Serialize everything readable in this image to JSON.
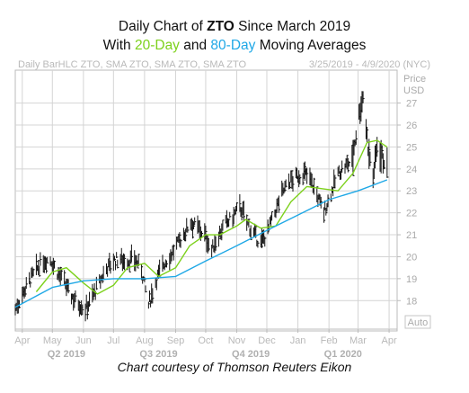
{
  "header": {
    "line1_pre": "Daily Chart of ",
    "line1_ticker": "ZTO",
    "line1_post": " Since March 2019",
    "line2_pre": "With ",
    "line2_ma1": "20-Day",
    "line2_mid": " and ",
    "line2_ma2": "80-Day",
    "line2_post": " Moving Averages"
  },
  "chart_meta": {
    "study_label": "Daily BarHLC ZTO, SMA ZTO, SMA ZTO, SMA ZTO",
    "date_range": "3/25/2019 - 4/9/2020 (NYC)",
    "price_label": "Price",
    "currency_label": "USD",
    "auto_label": "Auto"
  },
  "caption": "Chart courtesy of Thomson Reuters Eikon",
  "colors": {
    "bars": "#111111",
    "sma20": "#7dd11c",
    "sma80": "#1fa8e6",
    "grid": "#d4d4d4",
    "frame": "#bbbbbb"
  },
  "chart_data": {
    "type": "line",
    "title": "Daily Chart of ZTO Since March 2019",
    "subtitle": "With 20-Day and 80-Day Moving Averages",
    "xlabel": "",
    "ylabel": "Price USD",
    "ylim": [
      16.7,
      28.5
    ],
    "yticks": [
      18,
      19,
      20,
      21,
      22,
      23,
      24,
      25,
      26,
      27
    ],
    "x_start": "2019-03-25",
    "x_end": "2020-04-09",
    "x_month_ticks": [
      {
        "label": "Apr",
        "date": "2019-04-01"
      },
      {
        "label": "May",
        "date": "2019-05-01"
      },
      {
        "label": "Jun",
        "date": "2019-06-01"
      },
      {
        "label": "Jul",
        "date": "2019-07-01"
      },
      {
        "label": "Aug",
        "date": "2019-08-01"
      },
      {
        "label": "Sep",
        "date": "2019-09-01"
      },
      {
        "label": "Oct",
        "date": "2019-10-01"
      },
      {
        "label": "Nov",
        "date": "2019-11-01"
      },
      {
        "label": "Dec",
        "date": "2019-12-01"
      },
      {
        "label": "Jan",
        "date": "2020-01-01"
      },
      {
        "label": "Feb",
        "date": "2020-02-01"
      },
      {
        "label": "Mar",
        "date": "2020-03-01"
      },
      {
        "label": "Apr",
        "date": "2020-04-01"
      }
    ],
    "x_quarter_labels": [
      {
        "label": "Q2 2019",
        "date": "2019-05-15"
      },
      {
        "label": "Q3 2019",
        "date": "2019-08-15"
      },
      {
        "label": "Q4 2019",
        "date": "2019-11-15"
      },
      {
        "label": "Q1 2020",
        "date": "2020-02-15"
      }
    ],
    "grid": true,
    "price_points": [
      [
        "2019-03-25",
        17.6
      ],
      [
        "2019-04-01",
        18.3
      ],
      [
        "2019-04-08",
        18.9
      ],
      [
        "2019-04-15",
        19.4
      ],
      [
        "2019-04-22",
        19.8
      ],
      [
        "2019-04-29",
        19.9
      ],
      [
        "2019-05-06",
        19.3
      ],
      [
        "2019-05-13",
        18.8
      ],
      [
        "2019-05-20",
        18.2
      ],
      [
        "2019-05-27",
        17.9
      ],
      [
        "2019-06-03",
        17.6
      ],
      [
        "2019-06-10",
        18.2
      ],
      [
        "2019-06-17",
        18.8
      ],
      [
        "2019-06-24",
        19.5
      ],
      [
        "2019-07-01",
        19.8
      ],
      [
        "2019-07-08",
        19.9
      ],
      [
        "2019-07-15",
        19.8
      ],
      [
        "2019-07-22",
        19.9
      ],
      [
        "2019-07-29",
        19.4
      ],
      [
        "2019-08-05",
        17.8
      ],
      [
        "2019-08-12",
        18.9
      ],
      [
        "2019-08-19",
        19.6
      ],
      [
        "2019-08-26",
        20.0
      ],
      [
        "2019-09-02",
        20.5
      ],
      [
        "2019-09-09",
        21.0
      ],
      [
        "2019-09-16",
        21.6
      ],
      [
        "2019-09-23",
        21.3
      ],
      [
        "2019-09-30",
        21.0
      ],
      [
        "2019-10-07",
        20.3
      ],
      [
        "2019-10-14",
        21.0
      ],
      [
        "2019-10-21",
        21.5
      ],
      [
        "2019-10-28",
        21.8
      ],
      [
        "2019-11-04",
        22.3
      ],
      [
        "2019-11-11",
        21.6
      ],
      [
        "2019-11-18",
        21.0
      ],
      [
        "2019-11-25",
        20.6
      ],
      [
        "2019-12-02",
        21.2
      ],
      [
        "2019-12-09",
        22.0
      ],
      [
        "2019-12-16",
        22.9
      ],
      [
        "2019-12-23",
        23.4
      ],
      [
        "2019-12-30",
        23.6
      ],
      [
        "2020-01-06",
        23.8
      ],
      [
        "2020-01-13",
        23.6
      ],
      [
        "2020-01-20",
        22.8
      ],
      [
        "2020-01-27",
        22.0
      ],
      [
        "2020-02-03",
        22.9
      ],
      [
        "2020-02-10",
        23.8
      ],
      [
        "2020-02-17",
        24.1
      ],
      [
        "2020-02-24",
        24.4
      ],
      [
        "2020-03-02",
        26.5
      ],
      [
        "2020-03-06",
        27.3
      ],
      [
        "2020-03-11",
        25.0
      ],
      [
        "2020-03-16",
        23.6
      ],
      [
        "2020-03-20",
        25.1
      ],
      [
        "2020-03-25",
        24.6
      ],
      [
        "2020-03-30",
        24.0
      ]
    ],
    "series": [
      {
        "name": "SMA 20",
        "values": [
          [
            "2019-04-15",
            18.4
          ],
          [
            "2019-05-01",
            19.3
          ],
          [
            "2019-05-15",
            19.5
          ],
          [
            "2019-06-01",
            18.8
          ],
          [
            "2019-06-15",
            18.3
          ],
          [
            "2019-07-01",
            18.7
          ],
          [
            "2019-07-15",
            19.5
          ],
          [
            "2019-08-01",
            19.7
          ],
          [
            "2019-08-15",
            19.1
          ],
          [
            "2019-09-01",
            19.5
          ],
          [
            "2019-09-15",
            20.5
          ],
          [
            "2019-10-01",
            21.0
          ],
          [
            "2019-10-15",
            21.0
          ],
          [
            "2019-11-01",
            21.4
          ],
          [
            "2019-11-10",
            21.7
          ],
          [
            "2019-11-25",
            21.3
          ],
          [
            "2019-12-10",
            21.4
          ],
          [
            "2019-12-25",
            22.5
          ],
          [
            "2020-01-10",
            23.2
          ],
          [
            "2020-01-25",
            23.1
          ],
          [
            "2020-02-10",
            23.0
          ],
          [
            "2020-02-25",
            23.8
          ],
          [
            "2020-03-10",
            25.2
          ],
          [
            "2020-03-20",
            25.3
          ],
          [
            "2020-03-30",
            25.0
          ]
        ]
      },
      {
        "name": "SMA 80",
        "values": [
          [
            "2019-03-25",
            17.7
          ],
          [
            "2019-05-01",
            18.6
          ],
          [
            "2019-06-01",
            18.9
          ],
          [
            "2019-07-01",
            19.0
          ],
          [
            "2019-08-01",
            19.0
          ],
          [
            "2019-09-01",
            19.1
          ],
          [
            "2019-10-01",
            19.8
          ],
          [
            "2019-11-01",
            20.5
          ],
          [
            "2019-12-01",
            21.2
          ],
          [
            "2020-01-01",
            21.9
          ],
          [
            "2020-02-01",
            22.6
          ],
          [
            "2020-03-01",
            23.0
          ],
          [
            "2020-03-30",
            23.5
          ]
        ]
      }
    ]
  }
}
